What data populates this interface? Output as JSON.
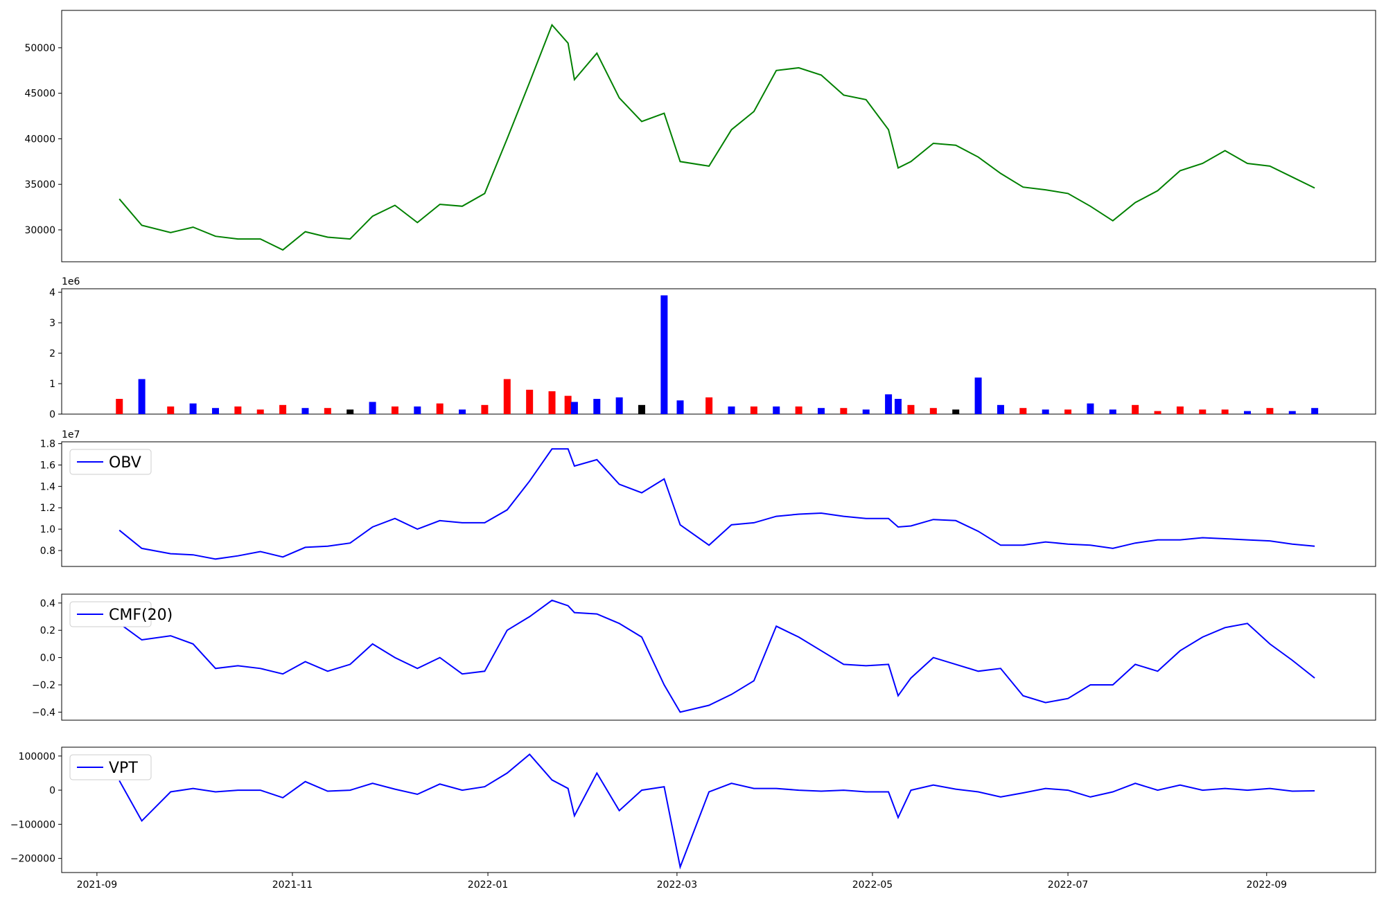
{
  "chart_data": [
    {
      "type": "line",
      "x": [
        "2021-09-08",
        "2021-09-15",
        "2021-09-24",
        "2021-10-01",
        "2021-10-08",
        "2021-10-15",
        "2021-10-22",
        "2021-10-29",
        "2021-11-05",
        "2021-11-12",
        "2021-11-19",
        "2021-11-26",
        "2021-12-03",
        "2021-12-10",
        "2021-12-17",
        "2021-12-24",
        "2021-12-31",
        "2022-01-07",
        "2022-01-14",
        "2022-01-21",
        "2022-01-26",
        "2022-01-28",
        "2022-02-04",
        "2022-02-11",
        "2022-02-18",
        "2022-02-25",
        "2022-03-02",
        "2022-03-11",
        "2022-03-18",
        "2022-03-25",
        "2022-04-01",
        "2022-04-08",
        "2022-04-15",
        "2022-04-22",
        "2022-04-29",
        "2022-05-06",
        "2022-05-09",
        "2022-05-13",
        "2022-05-20",
        "2022-05-27",
        "2022-06-03",
        "2022-06-10",
        "2022-06-17",
        "2022-06-24",
        "2022-07-01",
        "2022-07-08",
        "2022-07-15",
        "2022-07-22",
        "2022-07-29",
        "2022-08-05",
        "2022-08-12",
        "2022-08-19",
        "2022-08-26",
        "2022-09-02",
        "2022-09-09",
        "2022-09-16"
      ],
      "series": [
        {
          "color": "#008000",
          "values": [
            33400,
            30500,
            29700,
            30300,
            29300,
            29000,
            29000,
            27800,
            29800,
            29200,
            29000,
            31500,
            32700,
            30800,
            32800,
            32600,
            34000,
            40000,
            46200,
            52500,
            50500,
            46500,
            49400,
            44500,
            41900,
            42800,
            37500,
            37000,
            41000,
            43000,
            47500,
            47800,
            47000,
            44800,
            44300,
            41000,
            36800,
            37500,
            39500,
            39300,
            38000,
            36200,
            34700,
            34400,
            34000,
            32600,
            31000,
            33000,
            34300,
            36500,
            37300,
            38700,
            37300,
            37000,
            35800,
            34600
          ]
        }
      ],
      "xlim": [
        "2021-08-21",
        "2022-10-05"
      ],
      "ylim": [
        26500,
        54100
      ],
      "yticks": [
        30000,
        35000,
        40000,
        45000,
        50000
      ]
    },
    {
      "type": "bar",
      "x": [
        "2021-09-08",
        "2021-09-15",
        "2021-09-24",
        "2021-10-01",
        "2021-10-08",
        "2021-10-15",
        "2021-10-22",
        "2021-10-29",
        "2021-11-05",
        "2021-11-12",
        "2021-11-19",
        "2021-11-26",
        "2021-12-03",
        "2021-12-10",
        "2021-12-17",
        "2021-12-24",
        "2021-12-31",
        "2022-01-07",
        "2022-01-14",
        "2022-01-21",
        "2022-01-26",
        "2022-01-28",
        "2022-02-04",
        "2022-02-11",
        "2022-02-18",
        "2022-02-25",
        "2022-03-02",
        "2022-03-11",
        "2022-03-18",
        "2022-03-25",
        "2022-04-01",
        "2022-04-08",
        "2022-04-15",
        "2022-04-22",
        "2022-04-29",
        "2022-05-06",
        "2022-05-09",
        "2022-05-13",
        "2022-05-20",
        "2022-05-27",
        "2022-06-03",
        "2022-06-10",
        "2022-06-17",
        "2022-06-24",
        "2022-07-01",
        "2022-07-08",
        "2022-07-15",
        "2022-07-22",
        "2022-07-29",
        "2022-08-05",
        "2022-08-12",
        "2022-08-19",
        "2022-08-26",
        "2022-09-02",
        "2022-09-09",
        "2022-09-16"
      ],
      "values": [
        500000,
        1150000,
        250000,
        350000,
        200000,
        250000,
        150000,
        300000,
        200000,
        200000,
        150000,
        400000,
        250000,
        250000,
        350000,
        150000,
        300000,
        1150000,
        800000,
        750000,
        600000,
        400000,
        500000,
        550000,
        300000,
        3900000,
        450000,
        550000,
        250000,
        250000,
        250000,
        250000,
        200000,
        200000,
        150000,
        650000,
        500000,
        300000,
        200000,
        150000,
        1200000,
        300000,
        200000,
        150000,
        150000,
        350000,
        150000,
        300000,
        100000,
        250000,
        150000,
        150000,
        100000,
        200000,
        100000,
        200000
      ],
      "colors": [
        "red",
        "blue",
        "red",
        "blue",
        "blue",
        "red",
        "red",
        "red",
        "blue",
        "red",
        "black",
        "blue",
        "red",
        "blue",
        "red",
        "blue",
        "red",
        "red",
        "red",
        "red",
        "red",
        "blue",
        "blue",
        "blue",
        "black",
        "blue",
        "blue",
        "red",
        "blue",
        "red",
        "blue",
        "red",
        "blue",
        "red",
        "blue",
        "blue",
        "blue",
        "red",
        "red",
        "black",
        "blue",
        "blue",
        "red",
        "blue",
        "red",
        "blue",
        "blue",
        "red",
        "red",
        "red",
        "red",
        "red",
        "blue",
        "red",
        "blue",
        "blue"
      ],
      "xlim": [
        "2021-08-21",
        "2022-10-05"
      ],
      "ylim": [
        0,
        4116000
      ],
      "yticks": [
        0,
        {
          "value": 1000000,
          "label": "1"
        },
        {
          "value": 2000000,
          "label": "2"
        },
        {
          "value": 3000000,
          "label": "3"
        },
        {
          "value": 4000000,
          "label": "4"
        }
      ],
      "offset_label": "1e6"
    },
    {
      "type": "line",
      "x": [
        "2021-09-08",
        "2021-09-15",
        "2021-09-24",
        "2021-10-01",
        "2021-10-08",
        "2021-10-15",
        "2021-10-22",
        "2021-10-29",
        "2021-11-05",
        "2021-11-12",
        "2021-11-19",
        "2021-11-26",
        "2021-12-03",
        "2021-12-10",
        "2021-12-17",
        "2021-12-24",
        "2021-12-31",
        "2022-01-07",
        "2022-01-14",
        "2022-01-21",
        "2022-01-26",
        "2022-01-28",
        "2022-02-04",
        "2022-02-11",
        "2022-02-18",
        "2022-02-25",
        "2022-03-02",
        "2022-03-11",
        "2022-03-18",
        "2022-03-25",
        "2022-04-01",
        "2022-04-08",
        "2022-04-15",
        "2022-04-22",
        "2022-04-29",
        "2022-05-06",
        "2022-05-09",
        "2022-05-13",
        "2022-05-20",
        "2022-05-27",
        "2022-06-03",
        "2022-06-10",
        "2022-06-17",
        "2022-06-24",
        "2022-07-01",
        "2022-07-08",
        "2022-07-15",
        "2022-07-22",
        "2022-07-29",
        "2022-08-05",
        "2022-08-12",
        "2022-08-19",
        "2022-08-26",
        "2022-09-02",
        "2022-09-09",
        "2022-09-16"
      ],
      "series": [
        {
          "name": "OBV",
          "color": "#0000ff",
          "values": [
            9900000,
            8200000,
            7700000,
            7600000,
            7200000,
            7500000,
            7900000,
            7400000,
            8300000,
            8400000,
            8700000,
            10200000,
            11000000,
            10000000,
            10800000,
            10600000,
            10600000,
            11800000,
            14500000,
            17500000,
            17500000,
            15900000,
            16500000,
            14200000,
            13400000,
            14700000,
            10400000,
            8500000,
            10400000,
            10600000,
            11200000,
            11400000,
            11500000,
            11200000,
            11000000,
            11000000,
            10200000,
            10300000,
            10900000,
            10800000,
            9800000,
            8500000,
            8500000,
            8800000,
            8600000,
            8500000,
            8200000,
            8700000,
            9000000,
            9000000,
            9200000,
            9100000,
            9000000,
            8900000,
            8600000,
            8400000
          ]
        }
      ],
      "xlim": [
        "2021-08-21",
        "2022-10-05"
      ],
      "ylim": [
        6510000,
        18170000
      ],
      "yticks": [
        {
          "value": 8000000,
          "label": "0.8"
        },
        {
          "value": 10000000,
          "label": "1.0"
        },
        {
          "value": 12000000,
          "label": "1.2"
        },
        {
          "value": 14000000,
          "label": "1.4"
        },
        {
          "value": 16000000,
          "label": "1.6"
        },
        {
          "value": 18000000,
          "label": "1.8"
        }
      ],
      "offset_label": "1e7",
      "legend": "upper left"
    },
    {
      "type": "line",
      "x": [
        "2021-09-08",
        "2021-09-15",
        "2021-09-24",
        "2021-10-01",
        "2021-10-08",
        "2021-10-15",
        "2021-10-22",
        "2021-10-29",
        "2021-11-05",
        "2021-11-12",
        "2021-11-19",
        "2021-11-26",
        "2021-12-03",
        "2021-12-10",
        "2021-12-17",
        "2021-12-24",
        "2021-12-31",
        "2022-01-07",
        "2022-01-14",
        "2022-01-21",
        "2022-01-26",
        "2022-01-28",
        "2022-02-04",
        "2022-02-11",
        "2022-02-18",
        "2022-02-25",
        "2022-03-02",
        "2022-03-11",
        "2022-03-18",
        "2022-03-25",
        "2022-04-01",
        "2022-04-08",
        "2022-04-15",
        "2022-04-22",
        "2022-04-29",
        "2022-05-06",
        "2022-05-09",
        "2022-05-13",
        "2022-05-20",
        "2022-05-27",
        "2022-06-03",
        "2022-06-10",
        "2022-06-17",
        "2022-06-24",
        "2022-07-01",
        "2022-07-08",
        "2022-07-15",
        "2022-07-22",
        "2022-07-29",
        "2022-08-05",
        "2022-08-12",
        "2022-08-19",
        "2022-08-26",
        "2022-09-02",
        "2022-09-09",
        "2022-09-16"
      ],
      "series": [
        {
          "name": "CMF(20)",
          "color": "#0000ff",
          "values": [
            0.25,
            0.13,
            0.16,
            0.1,
            -0.08,
            -0.06,
            -0.08,
            -0.12,
            -0.03,
            -0.1,
            -0.05,
            0.1,
            0.0,
            -0.08,
            0.0,
            -0.12,
            -0.1,
            0.2,
            0.3,
            0.42,
            0.38,
            0.33,
            0.32,
            0.25,
            0.15,
            -0.2,
            -0.4,
            -0.35,
            -0.27,
            -0.17,
            0.23,
            0.15,
            0.05,
            -0.05,
            -0.06,
            -0.05,
            -0.28,
            -0.15,
            0.0,
            -0.05,
            -0.1,
            -0.08,
            -0.28,
            -0.33,
            -0.3,
            -0.2,
            -0.2,
            -0.05,
            -0.1,
            0.05,
            0.15,
            0.22,
            0.25,
            0.1,
            -0.02,
            -0.15
          ]
        }
      ],
      "xlim": [
        "2021-08-21",
        "2022-10-05"
      ],
      "ylim": [
        -0.459,
        0.465
      ],
      "yticks": [
        {
          "value": -0.4,
          "label": "−0.4"
        },
        {
          "value": -0.2,
          "label": "−0.2"
        },
        {
          "value": 0,
          "label": "0.0"
        },
        0.2,
        0.4
      ],
      "legend": "upper left"
    },
    {
      "type": "line",
      "x": [
        "2021-09-08",
        "2021-09-15",
        "2021-09-24",
        "2021-10-01",
        "2021-10-08",
        "2021-10-15",
        "2021-10-22",
        "2021-10-29",
        "2021-11-05",
        "2021-11-12",
        "2021-11-19",
        "2021-11-26",
        "2021-12-03",
        "2021-12-10",
        "2021-12-17",
        "2021-12-24",
        "2021-12-31",
        "2022-01-07",
        "2022-01-14",
        "2022-01-21",
        "2022-01-26",
        "2022-01-28",
        "2022-02-04",
        "2022-02-11",
        "2022-02-18",
        "2022-02-25",
        "2022-03-02",
        "2022-03-11",
        "2022-03-18",
        "2022-03-25",
        "2022-04-01",
        "2022-04-08",
        "2022-04-15",
        "2022-04-22",
        "2022-04-29",
        "2022-05-06",
        "2022-05-09",
        "2022-05-13",
        "2022-05-20",
        "2022-05-27",
        "2022-06-03",
        "2022-06-10",
        "2022-06-17",
        "2022-06-24",
        "2022-07-01",
        "2022-07-08",
        "2022-07-15",
        "2022-07-22",
        "2022-07-29",
        "2022-08-05",
        "2022-08-12",
        "2022-08-19",
        "2022-08-26",
        "2022-09-02",
        "2022-09-09",
        "2022-09-16"
      ],
      "series": [
        {
          "name": "VPT",
          "color": "#0000ff",
          "values": [
            28000,
            -90000,
            -5000,
            5000,
            -5000,
            0,
            0,
            -22000,
            25000,
            -3000,
            0,
            20000,
            3000,
            -12000,
            18000,
            0,
            10000,
            50000,
            105000,
            30000,
            5000,
            -75000,
            50000,
            -60000,
            0,
            10000,
            -225000,
            -5000,
            20000,
            5000,
            5000,
            0,
            -3000,
            0,
            -5000,
            -5000,
            -80000,
            0,
            15000,
            3000,
            -5000,
            -20000,
            -8000,
            5000,
            0,
            -20000,
            -5000,
            20000,
            0,
            15000,
            0,
            5000,
            0,
            5000,
            -3000,
            -2000
          ]
        }
      ],
      "xlim": [
        "2021-08-21",
        "2022-10-05"
      ],
      "ylim": [
        -241300,
        125900
      ],
      "yticks": [
        {
          "value": -200000,
          "label": "−200000"
        },
        {
          "value": -100000,
          "label": "−100000"
        },
        0,
        100000
      ],
      "xticks": [
        {
          "value": "2021-09-01",
          "label": "2021-09"
        },
        {
          "value": "2021-11-01",
          "label": "2021-11"
        },
        {
          "value": "2022-01-01",
          "label": "2022-01"
        },
        {
          "value": "2022-03-01",
          "label": "2022-03"
        },
        {
          "value": "2022-05-01",
          "label": "2022-05"
        },
        {
          "value": "2022-07-01",
          "label": "2022-07"
        },
        {
          "value": "2022-09-01",
          "label": "2022-09"
        }
      ],
      "legend": "upper left"
    }
  ]
}
